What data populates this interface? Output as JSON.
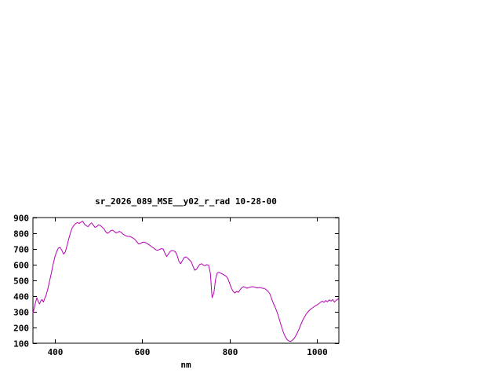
{
  "window": {
    "background_color": "#ffffff"
  },
  "chart_data": {
    "type": "line",
    "title": "sr_2026_089_MSE__y02_r_rad 10-28-00",
    "xlabel": "nm",
    "ylabel": "",
    "xlim": [
      350,
      1050
    ],
    "ylim": [
      100,
      900
    ],
    "xticks": [
      400,
      600,
      800,
      1000
    ],
    "yticks": [
      100,
      200,
      300,
      400,
      500,
      600,
      700,
      800,
      900
    ],
    "grid": false,
    "legend": "none",
    "line_color": "#b400b4",
    "axis_color": "#000000",
    "series_name": "sr_2026_089_MSE__y02_r_rad",
    "points": [
      [
        350,
        290
      ],
      [
        353,
        325
      ],
      [
        356,
        360
      ],
      [
        359,
        390
      ],
      [
        362,
        365
      ],
      [
        365,
        350
      ],
      [
        368,
        370
      ],
      [
        371,
        378
      ],
      [
        374,
        362
      ],
      [
        377,
        385
      ],
      [
        380,
        405
      ],
      [
        384,
        445
      ],
      [
        388,
        495
      ],
      [
        392,
        545
      ],
      [
        396,
        600
      ],
      [
        400,
        648
      ],
      [
        404,
        682
      ],
      [
        408,
        705
      ],
      [
        412,
        710
      ],
      [
        416,
        692
      ],
      [
        420,
        668
      ],
      [
        424,
        680
      ],
      [
        428,
        722
      ],
      [
        432,
        765
      ],
      [
        436,
        805
      ],
      [
        440,
        835
      ],
      [
        444,
        852
      ],
      [
        448,
        862
      ],
      [
        452,
        868
      ],
      [
        456,
        862
      ],
      [
        460,
        872
      ],
      [
        464,
        876
      ],
      [
        468,
        858
      ],
      [
        472,
        848
      ],
      [
        476,
        842
      ],
      [
        480,
        856
      ],
      [
        484,
        866
      ],
      [
        488,
        852
      ],
      [
        492,
        838
      ],
      [
        496,
        842
      ],
      [
        500,
        854
      ],
      [
        504,
        850
      ],
      [
        508,
        840
      ],
      [
        512,
        830
      ],
      [
        516,
        812
      ],
      [
        520,
        800
      ],
      [
        524,
        806
      ],
      [
        528,
        816
      ],
      [
        532,
        820
      ],
      [
        536,
        812
      ],
      [
        540,
        802
      ],
      [
        544,
        806
      ],
      [
        548,
        812
      ],
      [
        552,
        806
      ],
      [
        556,
        795
      ],
      [
        560,
        788
      ],
      [
        564,
        782
      ],
      [
        568,
        780
      ],
      [
        572,
        780
      ],
      [
        576,
        774
      ],
      [
        580,
        768
      ],
      [
        584,
        758
      ],
      [
        588,
        745
      ],
      [
        592,
        732
      ],
      [
        596,
        734
      ],
      [
        600,
        742
      ],
      [
        604,
        744
      ],
      [
        608,
        740
      ],
      [
        612,
        734
      ],
      [
        616,
        726
      ],
      [
        620,
        718
      ],
      [
        624,
        710
      ],
      [
        628,
        702
      ],
      [
        632,
        694
      ],
      [
        636,
        692
      ],
      [
        640,
        698
      ],
      [
        644,
        702
      ],
      [
        648,
        700
      ],
      [
        652,
        672
      ],
      [
        656,
        652
      ],
      [
        660,
        668
      ],
      [
        664,
        684
      ],
      [
        668,
        690
      ],
      [
        672,
        688
      ],
      [
        676,
        682
      ],
      [
        680,
        658
      ],
      [
        684,
        622
      ],
      [
        688,
        606
      ],
      [
        692,
        625
      ],
      [
        696,
        645
      ],
      [
        700,
        650
      ],
      [
        704,
        642
      ],
      [
        708,
        630
      ],
      [
        712,
        620
      ],
      [
        716,
        592
      ],
      [
        720,
        565
      ],
      [
        724,
        570
      ],
      [
        728,
        588
      ],
      [
        732,
        602
      ],
      [
        736,
        606
      ],
      [
        740,
        596
      ],
      [
        744,
        594
      ],
      [
        748,
        600
      ],
      [
        752,
        596
      ],
      [
        756,
        545
      ],
      [
        760,
        390
      ],
      [
        764,
        420
      ],
      [
        768,
        510
      ],
      [
        772,
        548
      ],
      [
        776,
        552
      ],
      [
        780,
        545
      ],
      [
        784,
        540
      ],
      [
        788,
        534
      ],
      [
        792,
        526
      ],
      [
        796,
        512
      ],
      [
        800,
        482
      ],
      [
        804,
        452
      ],
      [
        808,
        430
      ],
      [
        812,
        420
      ],
      [
        816,
        430
      ],
      [
        820,
        424
      ],
      [
        824,
        440
      ],
      [
        828,
        454
      ],
      [
        832,
        460
      ],
      [
        836,
        456
      ],
      [
        840,
        450
      ],
      [
        844,
        454
      ],
      [
        848,
        458
      ],
      [
        852,
        460
      ],
      [
        856,
        458
      ],
      [
        860,
        454
      ],
      [
        864,
        452
      ],
      [
        868,
        455
      ],
      [
        872,
        452
      ],
      [
        876,
        450
      ],
      [
        880,
        448
      ],
      [
        884,
        440
      ],
      [
        888,
        430
      ],
      [
        892,
        415
      ],
      [
        896,
        385
      ],
      [
        900,
        355
      ],
      [
        904,
        330
      ],
      [
        908,
        302
      ],
      [
        912,
        270
      ],
      [
        916,
        232
      ],
      [
        920,
        195
      ],
      [
        924,
        162
      ],
      [
        928,
        138
      ],
      [
        932,
        122
      ],
      [
        936,
        114
      ],
      [
        940,
        112
      ],
      [
        944,
        120
      ],
      [
        948,
        132
      ],
      [
        952,
        150
      ],
      [
        956,
        172
      ],
      [
        960,
        198
      ],
      [
        964,
        225
      ],
      [
        968,
        250
      ],
      [
        972,
        270
      ],
      [
        976,
        288
      ],
      [
        980,
        302
      ],
      [
        984,
        313
      ],
      [
        988,
        322
      ],
      [
        992,
        330
      ],
      [
        996,
        337
      ],
      [
        1000,
        344
      ],
      [
        1004,
        352
      ],
      [
        1008,
        360
      ],
      [
        1012,
        368
      ],
      [
        1016,
        360
      ],
      [
        1020,
        372
      ],
      [
        1024,
        364
      ],
      [
        1028,
        376
      ],
      [
        1032,
        368
      ],
      [
        1036,
        378
      ],
      [
        1040,
        362
      ],
      [
        1044,
        374
      ],
      [
        1048,
        380
      ],
      [
        1050,
        392
      ]
    ]
  }
}
